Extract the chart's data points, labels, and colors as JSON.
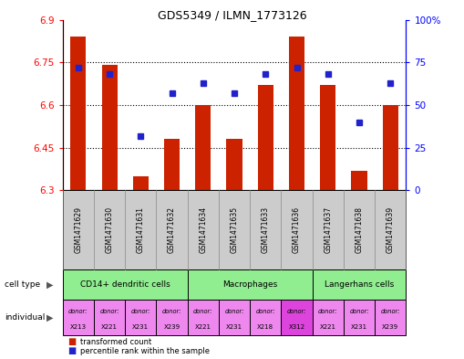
{
  "title": "GDS5349 / ILMN_1773126",
  "samples": [
    "GSM1471629",
    "GSM1471630",
    "GSM1471631",
    "GSM1471632",
    "GSM1471634",
    "GSM1471635",
    "GSM1471633",
    "GSM1471636",
    "GSM1471637",
    "GSM1471638",
    "GSM1471639"
  ],
  "transformed_count": [
    6.84,
    6.74,
    6.35,
    6.48,
    6.6,
    6.48,
    6.67,
    6.84,
    6.67,
    6.37,
    6.6
  ],
  "percentile_rank": [
    72,
    68,
    32,
    57,
    63,
    57,
    68,
    72,
    68,
    40,
    63
  ],
  "ylim_left": [
    6.3,
    6.9
  ],
  "ylim_right": [
    0,
    100
  ],
  "yticks_left": [
    6.3,
    6.45,
    6.6,
    6.75,
    6.9
  ],
  "ytick_labels_left": [
    "6.3",
    "6.45",
    "6.6",
    "6.75",
    "6.9"
  ],
  "yticks_right": [
    0,
    25,
    50,
    75,
    100
  ],
  "ytick_labels_right": [
    "0",
    "25",
    "50",
    "75",
    "100%"
  ],
  "cell_types": [
    {
      "label": "CD14+ dendritic cells",
      "start": 0,
      "end": 4,
      "color": "#90EE90"
    },
    {
      "label": "Macrophages",
      "start": 4,
      "end": 8,
      "color": "#90EE90"
    },
    {
      "label": "Langerhans cells",
      "start": 8,
      "end": 11,
      "color": "#90EE90"
    }
  ],
  "individuals": [
    {
      "donor": "X213",
      "color": "#ee88ee"
    },
    {
      "donor": "X221",
      "color": "#ee88ee"
    },
    {
      "donor": "X231",
      "color": "#ee88ee"
    },
    {
      "donor": "X239",
      "color": "#ee88ee"
    },
    {
      "donor": "X221",
      "color": "#ee88ee"
    },
    {
      "donor": "X231",
      "color": "#ee88ee"
    },
    {
      "donor": "X218",
      "color": "#ee88ee"
    },
    {
      "donor": "X312",
      "color": "#dd44dd"
    },
    {
      "donor": "X221",
      "color": "#ee88ee"
    },
    {
      "donor": "X231",
      "color": "#ee88ee"
    },
    {
      "donor": "X239",
      "color": "#ee88ee"
    }
  ],
  "bar_color": "#cc2200",
  "dot_color": "#2222cc",
  "bar_bottom": 6.3,
  "sample_bg": "#cccccc",
  "legend_tc": "transformed count",
  "legend_pr": "percentile rank within the sample"
}
